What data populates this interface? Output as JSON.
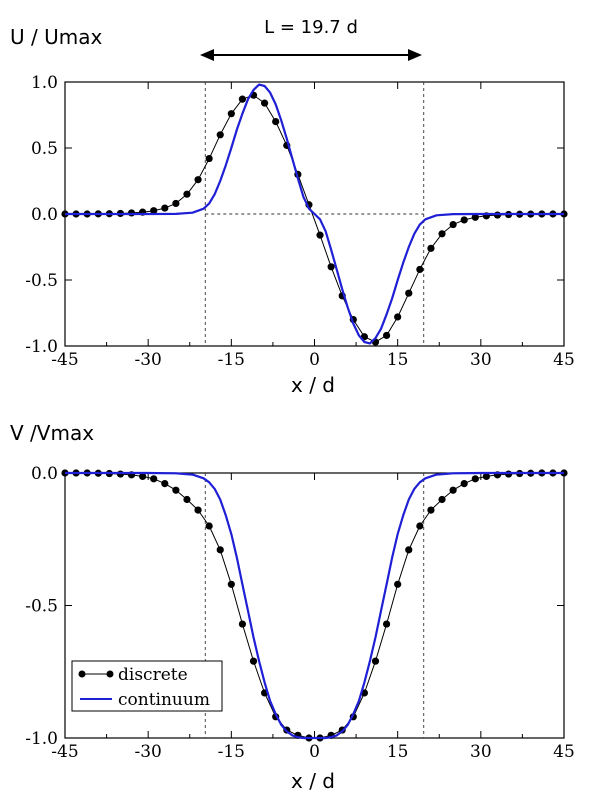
{
  "chart_data": [
    {
      "type": "line",
      "ylabel": "U / Umax",
      "xlabel": "x / d",
      "annotation": "L = 19.7 d",
      "xlim": [
        -45,
        45
      ],
      "ylim": [
        -1.0,
        1.0
      ],
      "xticks": [
        "-45",
        "-30",
        "-15",
        "0",
        "15",
        "30",
        "45"
      ],
      "yticks": [
        "1.0",
        "0.5",
        "0.0",
        "-0.5",
        "-1.0"
      ],
      "vlines": [
        -19.7,
        19.7
      ],
      "hline": 0,
      "series": [
        {
          "name": "discrete",
          "color": "#000000",
          "marker": "circle",
          "x": [
            -45,
            -43,
            -41,
            -39,
            -37,
            -35,
            -33,
            -31,
            -29,
            -27,
            -25,
            -23,
            -21,
            -19,
            -17,
            -15,
            -13,
            -11,
            -9,
            -7,
            -5,
            -3,
            -1,
            1,
            3,
            5,
            7,
            9,
            11,
            13,
            15,
            17,
            19,
            21,
            23,
            25,
            27,
            29,
            31,
            33,
            35,
            37,
            39,
            41,
            43,
            45
          ],
          "y": [
            0,
            0,
            0,
            0.001,
            0.002,
            0.004,
            0.008,
            0.014,
            0.025,
            0.045,
            0.08,
            0.15,
            0.26,
            0.42,
            0.6,
            0.76,
            0.87,
            0.9,
            0.84,
            0.7,
            0.52,
            0.3,
            0.07,
            -0.16,
            -0.4,
            -0.62,
            -0.8,
            -0.93,
            -0.97,
            -0.92,
            -0.78,
            -0.6,
            -0.42,
            -0.26,
            -0.15,
            -0.08,
            -0.045,
            -0.025,
            -0.014,
            -0.008,
            -0.004,
            -0.002,
            -0.001,
            0,
            0,
            0
          ]
        },
        {
          "name": "continuum",
          "color": "#1f1fd6",
          "x": [
            -45,
            -30,
            -25,
            -22,
            -20,
            -19,
            -18,
            -17,
            -16,
            -15,
            -14,
            -13,
            -12,
            -11,
            -10,
            -9,
            -8,
            -7,
            -6,
            -5,
            -4,
            -3,
            -2,
            -1,
            0,
            1,
            2,
            3,
            4,
            5,
            6,
            7,
            8,
            9,
            10,
            11,
            12,
            13,
            14,
            15,
            16,
            17,
            18,
            19,
            20,
            22,
            25,
            30,
            45
          ],
          "y": [
            0,
            0,
            0.001,
            0.01,
            0.04,
            0.08,
            0.15,
            0.25,
            0.37,
            0.5,
            0.64,
            0.76,
            0.87,
            0.94,
            0.98,
            0.97,
            0.92,
            0.83,
            0.71,
            0.57,
            0.42,
            0.27,
            0.13,
            0.04,
            0,
            -0.04,
            -0.13,
            -0.27,
            -0.42,
            -0.57,
            -0.71,
            -0.83,
            -0.92,
            -0.97,
            -0.98,
            -0.94,
            -0.87,
            -0.76,
            -0.64,
            -0.5,
            -0.37,
            -0.25,
            -0.15,
            -0.08,
            -0.04,
            -0.01,
            -0.001,
            0,
            0
          ]
        }
      ]
    },
    {
      "type": "line",
      "ylabel": "V /Vmax",
      "xlabel": "x / d",
      "xlim": [
        -45,
        45
      ],
      "ylim": [
        -1.0,
        0.0
      ],
      "xticks": [
        "-45",
        "-30",
        "-15",
        "0",
        "15",
        "30",
        "45"
      ],
      "yticks": [
        "0.0",
        "-0.5",
        "-1.0"
      ],
      "vlines": [
        -19.7,
        19.7
      ],
      "legend": {
        "position": "lower-left",
        "entries": [
          "discrete",
          "continuum"
        ]
      },
      "series": [
        {
          "name": "discrete",
          "color": "#000000",
          "marker": "circle",
          "x": [
            -45,
            -43,
            -41,
            -39,
            -37,
            -35,
            -33,
            -31,
            -29,
            -27,
            -25,
            -23,
            -21,
            -19,
            -17,
            -15,
            -13,
            -11,
            -9,
            -7,
            -5,
            -3,
            -1,
            1,
            3,
            5,
            7,
            9,
            11,
            13,
            15,
            17,
            19,
            21,
            23,
            25,
            27,
            29,
            31,
            33,
            35,
            37,
            39,
            41,
            43,
            45
          ],
          "y": [
            0,
            0,
            0,
            -0.001,
            -0.002,
            -0.004,
            -0.007,
            -0.013,
            -0.022,
            -0.04,
            -0.065,
            -0.1,
            -0.14,
            -0.2,
            -0.29,
            -0.42,
            -0.57,
            -0.71,
            -0.83,
            -0.92,
            -0.97,
            -0.99,
            -1.0,
            -1.0,
            -0.99,
            -0.97,
            -0.92,
            -0.83,
            -0.71,
            -0.57,
            -0.42,
            -0.29,
            -0.2,
            -0.14,
            -0.1,
            -0.065,
            -0.04,
            -0.022,
            -0.013,
            -0.007,
            -0.004,
            -0.002,
            -0.001,
            0,
            0,
            0
          ]
        },
        {
          "name": "continuum",
          "color": "#1f1fd6",
          "x": [
            -45,
            -30,
            -25,
            -22,
            -20,
            -19,
            -18,
            -17,
            -16,
            -15,
            -14,
            -13,
            -12,
            -11,
            -10,
            -9,
            -8,
            -7,
            -6,
            -5,
            -4,
            -3,
            -2,
            -1,
            0,
            1,
            2,
            3,
            4,
            5,
            6,
            7,
            8,
            9,
            10,
            11,
            12,
            13,
            14,
            15,
            16,
            17,
            18,
            19,
            20,
            22,
            25,
            30,
            45
          ],
          "y": [
            0,
            0,
            -0.001,
            -0.006,
            -0.02,
            -0.035,
            -0.06,
            -0.1,
            -0.16,
            -0.23,
            -0.32,
            -0.42,
            -0.52,
            -0.62,
            -0.71,
            -0.79,
            -0.86,
            -0.91,
            -0.95,
            -0.975,
            -0.99,
            -0.997,
            -1.0,
            -1.0,
            -1.0,
            -1.0,
            -1.0,
            -0.997,
            -0.99,
            -0.975,
            -0.95,
            -0.91,
            -0.86,
            -0.79,
            -0.71,
            -0.62,
            -0.52,
            -0.42,
            -0.32,
            -0.23,
            -0.16,
            -0.1,
            -0.06,
            -0.035,
            -0.02,
            -0.006,
            -0.001,
            0,
            0
          ]
        }
      ]
    }
  ]
}
